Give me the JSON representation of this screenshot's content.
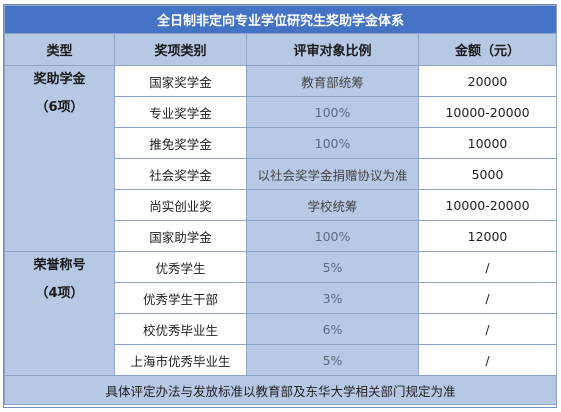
{
  "table": {
    "title": "全日制非定向专业学位研究生奖助学金体系",
    "headers": [
      "类型",
      "奖项类别",
      "评审对象比例",
      "金额（元）"
    ],
    "groups": [
      {
        "title": "奖助学金",
        "count": "（6项）",
        "rows": [
          {
            "name": "国家奖学金",
            "ratio": "教育部统筹",
            "amount": "20000"
          },
          {
            "name": "专业奖学金",
            "ratio": "100%",
            "amount": "10000-20000"
          },
          {
            "name": "推免奖学金",
            "ratio": "100%",
            "amount": "10000"
          },
          {
            "name": "社会奖学金",
            "ratio": "以社会奖学金捐赠协议为准",
            "amount": "5000"
          },
          {
            "name": "尚实创业奖",
            "ratio": "学校统筹",
            "amount": "10000-20000"
          },
          {
            "name": "国家助学金",
            "ratio": "100%",
            "amount": "12000"
          }
        ]
      },
      {
        "title": "荣誉称号",
        "count": "（4项）",
        "rows": [
          {
            "name": "优秀学生",
            "ratio": "5%",
            "amount": "/"
          },
          {
            "name": "优秀学生干部",
            "ratio": "3%",
            "amount": "/"
          },
          {
            "name": "校优秀毕业生",
            "ratio": "6%",
            "amount": "/"
          },
          {
            "name": "上海市优秀毕业生",
            "ratio": "5%",
            "amount": "/"
          }
        ]
      }
    ],
    "footer": "具体评定办法与发放标准以教育部及东华大学相关部门规定为准"
  }
}
